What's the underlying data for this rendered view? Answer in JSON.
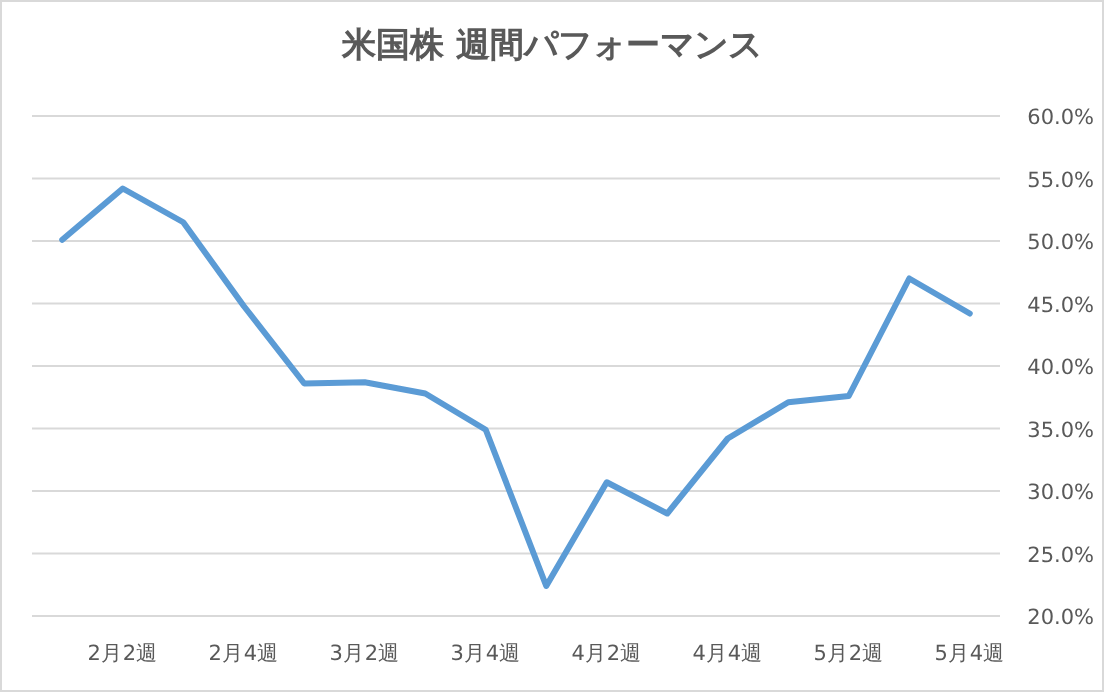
{
  "chart_data": {
    "type": "line",
    "title": "米国株 週間パフォーマンス",
    "categories": [
      null,
      "2月2週",
      null,
      "2月4週",
      null,
      "3月2週",
      null,
      "3月4週",
      null,
      "4月2週",
      null,
      "4月4週",
      null,
      "5月2週",
      null,
      "5月4週"
    ],
    "series": [
      {
        "color": "#5b9bd5",
        "values": [
          50.1,
          54.2,
          51.5,
          44.8,
          38.6,
          38.7,
          37.8,
          34.9,
          22.4,
          30.7,
          28.2,
          34.2,
          37.1,
          37.6,
          47.0,
          44.2
        ]
      }
    ],
    "ylim": [
      20,
      60
    ],
    "yticks": [
      {
        "value": 20,
        "label": "20.0%"
      },
      {
        "value": 25,
        "label": "25.0%"
      },
      {
        "value": 30,
        "label": "30.0%"
      },
      {
        "value": 35,
        "label": "35.0%"
      },
      {
        "value": 40,
        "label": "40.0%"
      },
      {
        "value": 45,
        "label": "45.0%"
      },
      {
        "value": 50,
        "label": "50.0%"
      },
      {
        "value": 55,
        "label": "55.0%"
      },
      {
        "value": 60,
        "label": "60.0%"
      }
    ],
    "grid": "y",
    "marker": "none",
    "line_style": "solid"
  }
}
